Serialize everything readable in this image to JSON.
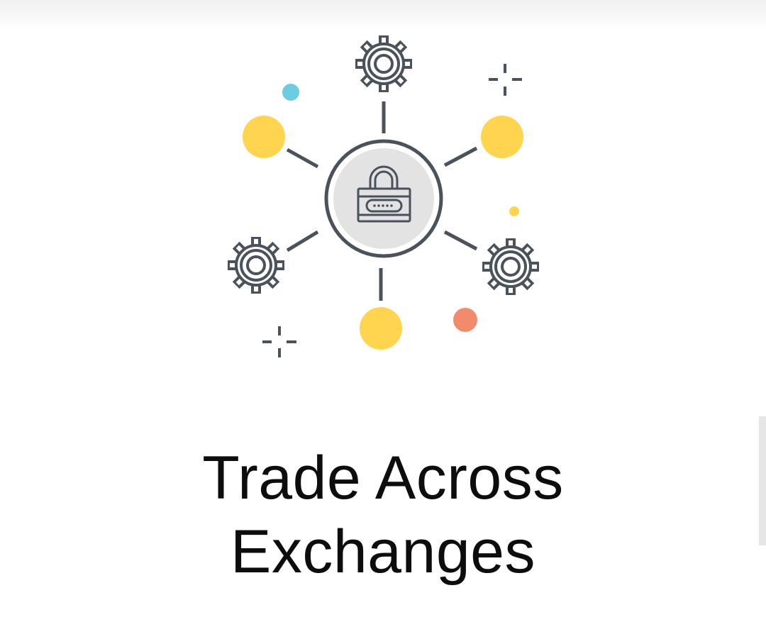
{
  "onboarding": {
    "title_line1": "Trade Across",
    "title_line2": "Exchanges"
  },
  "illustration": {
    "center_icon": "padlock-icon",
    "node_icons": [
      "gear-icon",
      "gear-icon",
      "gear-icon"
    ],
    "colors": {
      "stroke": "#4a525c",
      "node_yellow": "#ffd54f",
      "center_fill": "#e3e3e3",
      "dot_blue": "#6ccce0",
      "dot_coral": "#f28a6c",
      "dot_yellow": "#ffd54f"
    }
  }
}
